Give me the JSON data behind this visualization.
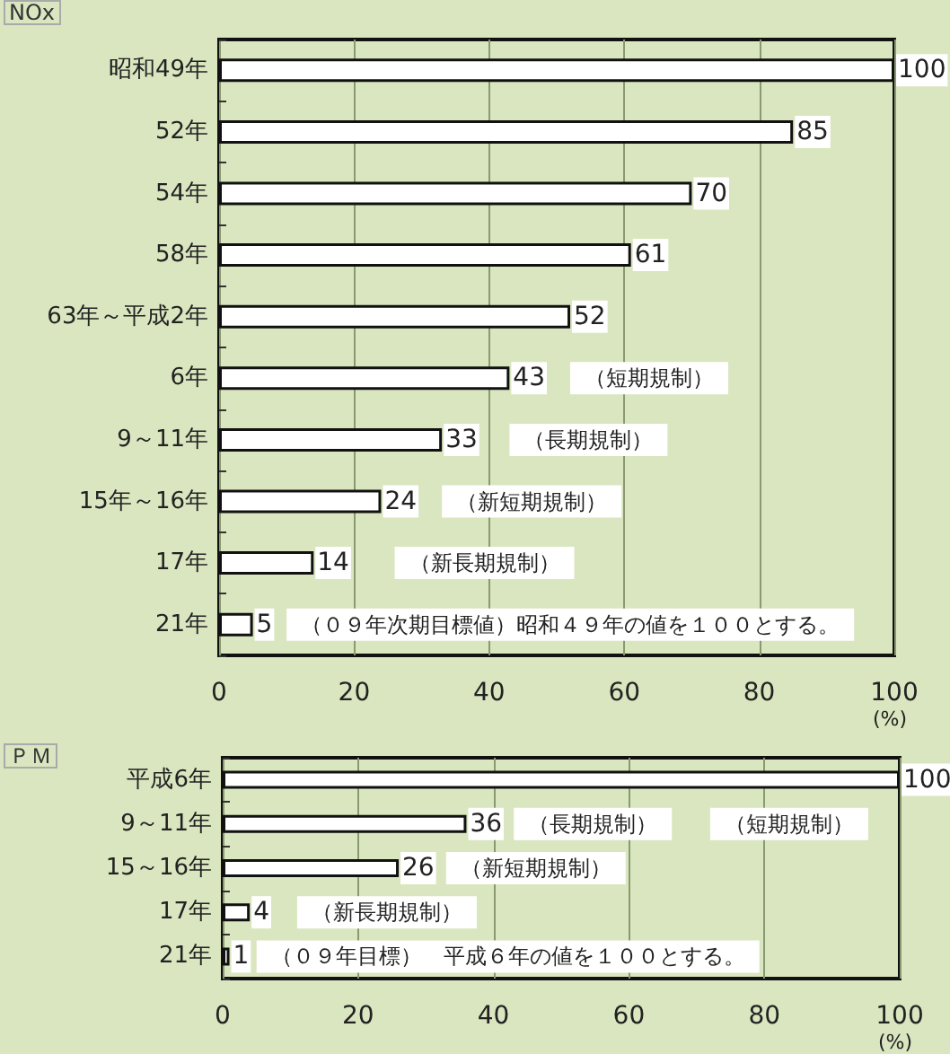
{
  "chart_data": [
    {
      "type": "bar",
      "title": "NOx",
      "orientation": "horizontal",
      "categories": [
        "昭和49年",
        "52年",
        "54年",
        "58年",
        "63年～平成2年",
        "6年",
        "9～11年",
        "15年～16年",
        "17年",
        "21年"
      ],
      "values": [
        100,
        85,
        70,
        61,
        52,
        43,
        33,
        24,
        14,
        5
      ],
      "color": "#ffffff",
      "data_labels": true,
      "xlim": [
        0,
        100
      ],
      "xticks": [
        0,
        20,
        40,
        60,
        80,
        100
      ],
      "xlabel": "(%)",
      "grid": "x",
      "annotations": [
        "（短期規制）",
        "（長期規制）",
        "（新短期規制）",
        "（新長期規制）",
        "（０９年次期目標値）昭和４９年の値を１００とする。"
      ]
    },
    {
      "type": "bar",
      "title": "ＰＭ",
      "orientation": "horizontal",
      "categories": [
        "平成6年",
        "9～11年",
        "15～16年",
        "17年",
        "21年"
      ],
      "values": [
        100,
        36,
        26,
        4,
        1
      ],
      "color": "#ffffff",
      "data_labels": true,
      "xlim": [
        0,
        100
      ],
      "xticks": [
        0,
        20,
        40,
        60,
        80,
        100
      ],
      "xlabel": "(%)",
      "grid": "x",
      "annotations": [
        "（短期規制）",
        "（長期規制）",
        "（新短期規制）",
        "（新長期規制）",
        "（０９年目標）　平成６年の値を１００とする。"
      ]
    }
  ]
}
